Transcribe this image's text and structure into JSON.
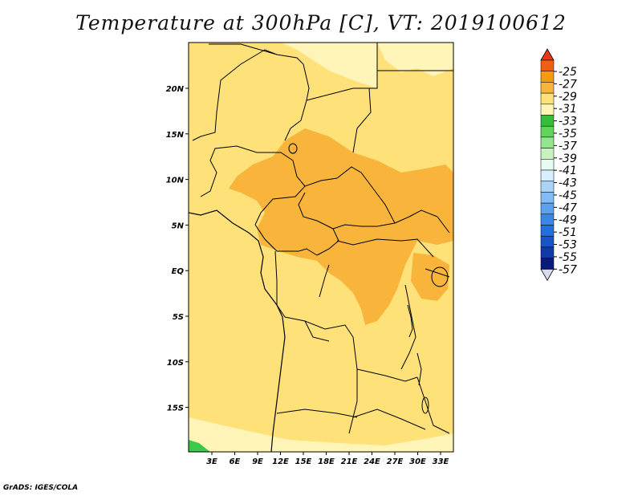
{
  "title": "Temperature at 300hPa [C], VT: 2019100612",
  "footer": "GrADS: IGES/COLA",
  "map": {
    "region": "Central Africa",
    "x_ticks": [
      "3E",
      "6E",
      "9E",
      "12E",
      "15E",
      "18E",
      "21E",
      "24E",
      "27E",
      "30E",
      "33E"
    ],
    "y_ticks": [
      "20N",
      "15N",
      "10N",
      "5N",
      "EQ",
      "5S",
      "10S",
      "15S"
    ],
    "colors": {
      "level_33_35": "#fff5b8",
      "level_31_33": "#ffe17a",
      "level_29_31": "#f9b43c",
      "level_37_39": "#3ec84a",
      "border": "#000000"
    }
  },
  "colorbar": {
    "levels": [
      "-25",
      "-27",
      "-29",
      "-31",
      "-33",
      "-35",
      "-37",
      "-39",
      "-41",
      "-43",
      "-45",
      "-47",
      "-49",
      "-51",
      "-53",
      "-55",
      "-57"
    ],
    "colors": [
      "#d8dcf0",
      "#0a1a7a",
      "#0f3aa8",
      "#1656c8",
      "#2270dc",
      "#3888e8",
      "#5aa2ee",
      "#82bcf2",
      "#aad4f6",
      "#d8efff",
      "#e8fbf0",
      "#c8f2c0",
      "#94e68e",
      "#62d45e",
      "#34be3c",
      "#fff5b8",
      "#ffe17a",
      "#f9b43c",
      "#f79a12",
      "#f06010",
      "#e83818"
    ]
  }
}
